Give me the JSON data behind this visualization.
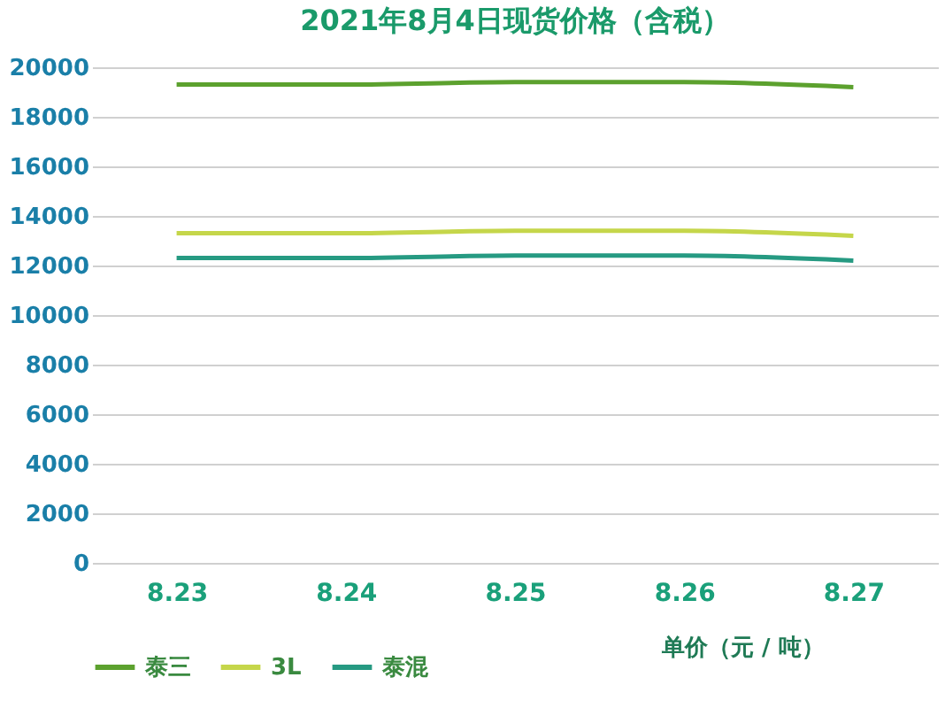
{
  "chart_data": {
    "type": "line",
    "title": "2021年8月4日现货价格（含税）",
    "categories": [
      "8.23",
      "8.24",
      "8.25",
      "8.26",
      "8.27"
    ],
    "series": [
      {
        "name": "泰三",
        "color": "#5ca12e",
        "values": [
          19300,
          19300,
          19400,
          19400,
          19200
        ]
      },
      {
        "name": "3L",
        "color": "#c5d64a",
        "values": [
          13300,
          13300,
          13400,
          13400,
          13200
        ]
      },
      {
        "name": "泰混",
        "color": "#269a82",
        "values": [
          12300,
          12300,
          12400,
          12400,
          12200
        ]
      }
    ],
    "ylim": [
      0,
      20000
    ],
    "yticks": [
      0,
      2000,
      4000,
      6000,
      8000,
      10000,
      12000,
      14000,
      16000,
      18000,
      20000
    ],
    "grid": "y",
    "legend": "bottom",
    "annotations": [
      "单价（元 / 吨）"
    ]
  }
}
